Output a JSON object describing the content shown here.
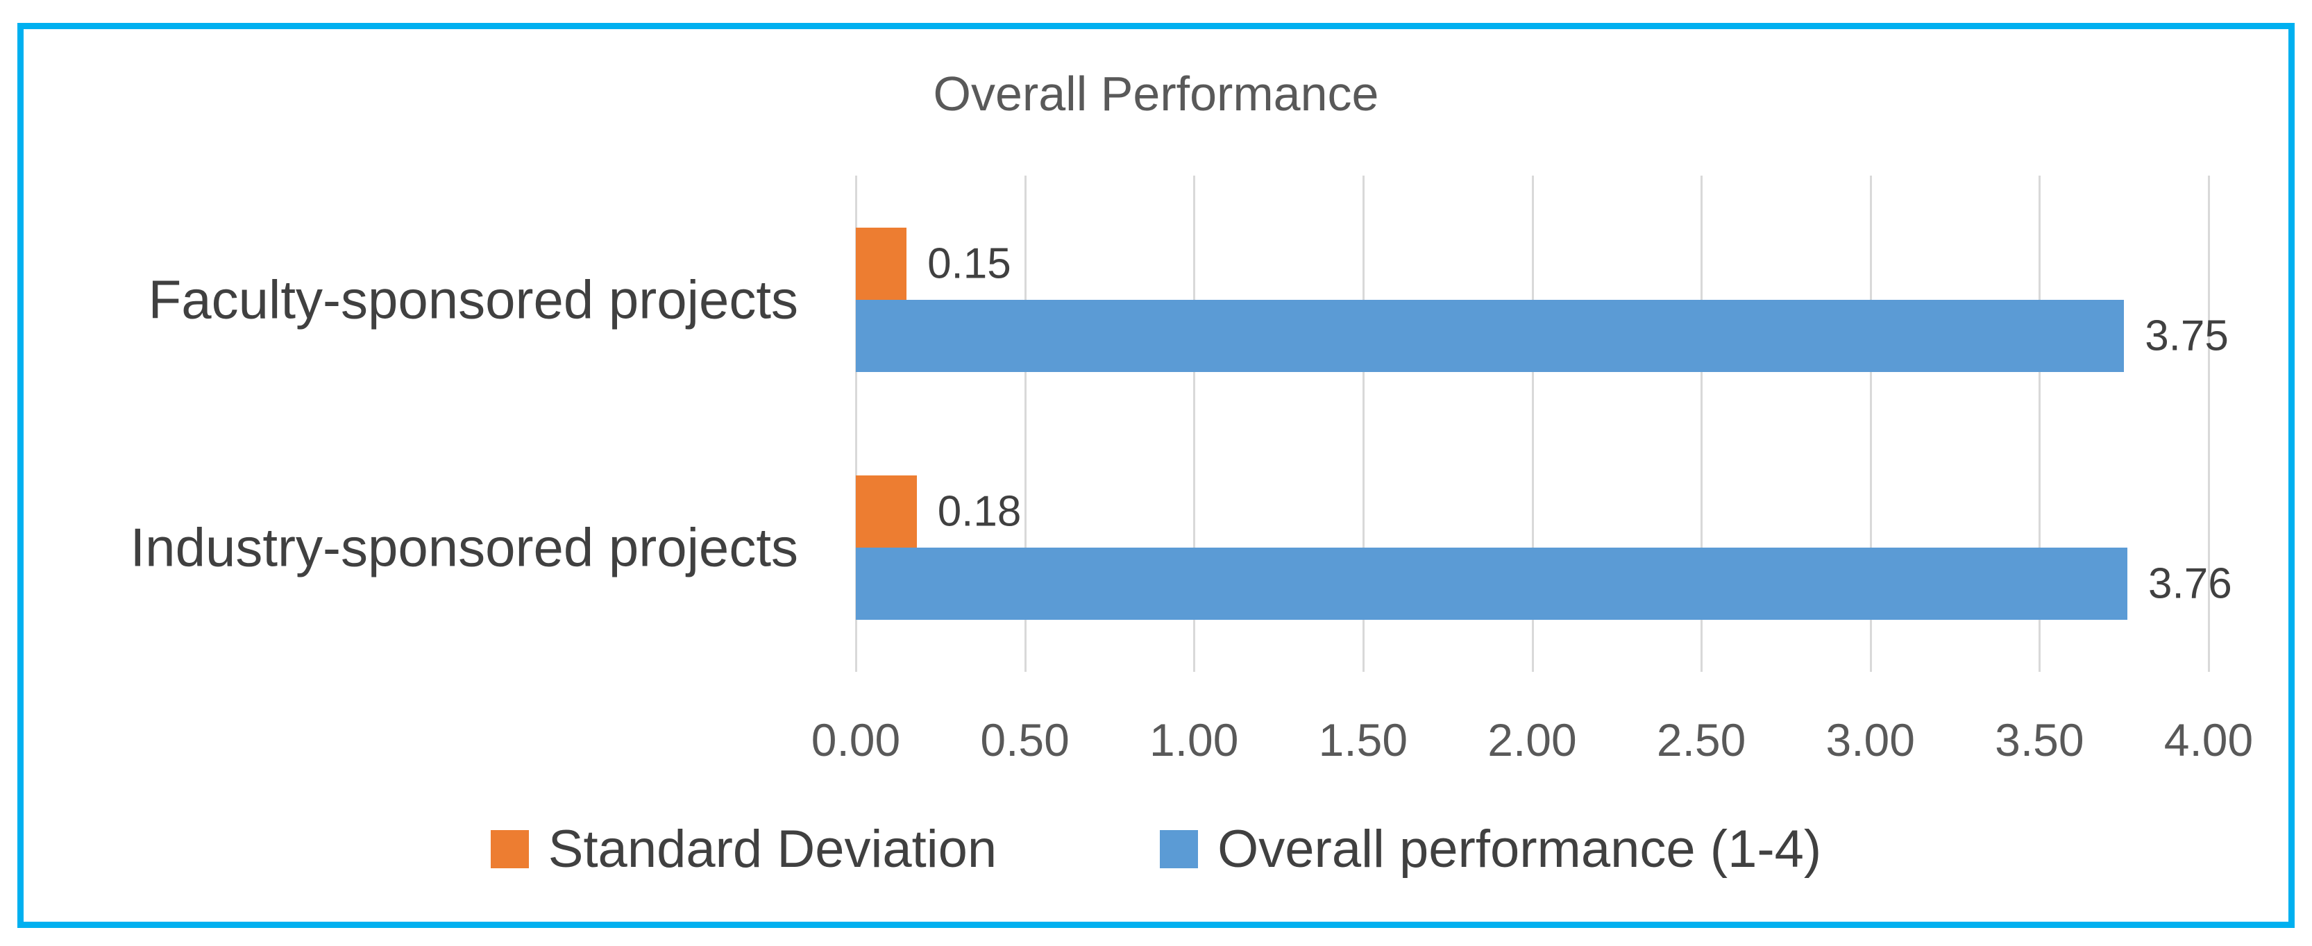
{
  "chart": {
    "border_color": "#00B0F0",
    "background_color": "#FFFFFF",
    "gridline_color": "#D9D9D9",
    "title_color": "#595959",
    "tick_label_color": "#595959",
    "category_label_color": "#404040",
    "data_label_color": "#404040",
    "legend_label_color": "#404040"
  },
  "chart_data": {
    "type": "bar",
    "orientation": "horizontal",
    "title": "Overall Performance",
    "categories": [
      "Faculty-sponsored projects",
      "Industry-sponsored projects"
    ],
    "series": [
      {
        "name": "Standard Deviation",
        "color": "#ED7D31",
        "values": [
          0.15,
          0.18
        ],
        "value_labels": [
          "0.15",
          "0.18"
        ]
      },
      {
        "name": "Overall performance (1-4)",
        "color": "#5B9BD5",
        "values": [
          3.75,
          3.76
        ],
        "value_labels": [
          "3.75",
          "3.76"
        ]
      }
    ],
    "xlim": [
      0,
      4
    ],
    "x_ticks": [
      0,
      0.5,
      1,
      1.5,
      2,
      2.5,
      3,
      3.5,
      4
    ],
    "x_tick_labels": [
      "0.00",
      "0.50",
      "1.00",
      "1.50",
      "2.00",
      "2.50",
      "3.00",
      "3.50",
      "4.00"
    ],
    "grid": true,
    "value_labels_shown": true,
    "legend_position": "bottom"
  }
}
